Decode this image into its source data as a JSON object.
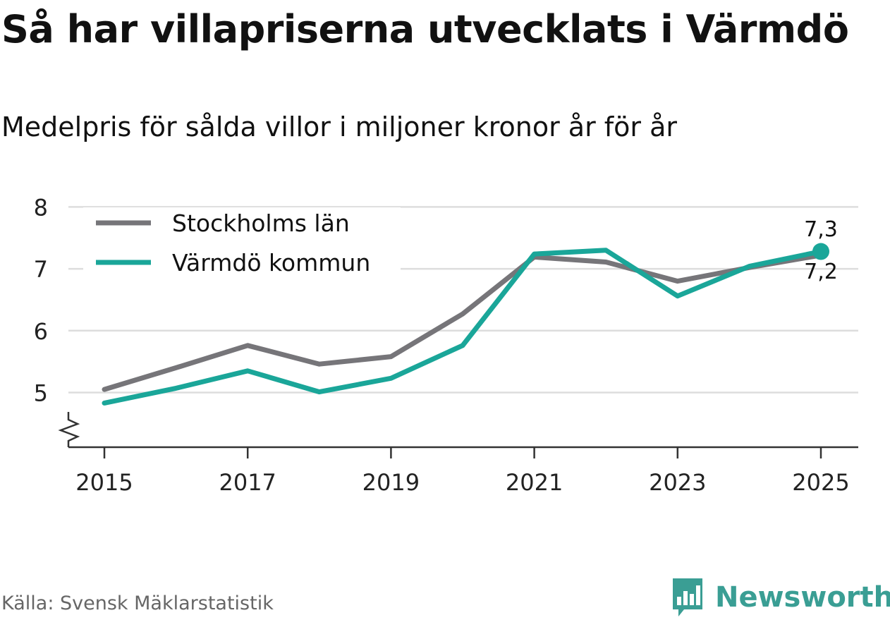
{
  "title": "Så har villapriserna utvecklats i Värmdö",
  "subtitle": "Medelpris för sålda villor i miljoner kronor år för år",
  "source": "Källa: Svensk Mäklarstatistik",
  "brand": "Newsworthy",
  "colors": {
    "stockholm": "#767579",
    "varmdo": "#1aa699",
    "brand": "#3a9e94",
    "grid": "#dddddd",
    "axis": "#333333"
  },
  "chart_data": {
    "type": "line",
    "x": [
      2015,
      2016,
      2017,
      2018,
      2019,
      2020,
      2021,
      2022,
      2023,
      2024,
      2025
    ],
    "x_tick_labels": [
      "2015",
      "2017",
      "2019",
      "2021",
      "2023",
      "2025"
    ],
    "y_tick_labels": [
      "5",
      "6",
      "7",
      "8"
    ],
    "ylim": [
      4.1,
      8.0
    ],
    "y_axis_break": true,
    "grid": true,
    "legend_placement": "top-left",
    "series": [
      {
        "name": "Stockholms län",
        "color": "#767579",
        "values": [
          5.05,
          5.4,
          5.76,
          5.46,
          5.58,
          6.27,
          7.19,
          7.11,
          6.8,
          7.02,
          7.22
        ]
      },
      {
        "name": "Värmdö kommun",
        "color": "#1aa699",
        "values": [
          4.83,
          5.07,
          5.35,
          5.01,
          5.23,
          5.76,
          7.24,
          7.3,
          6.56,
          7.04,
          7.28
        ]
      }
    ],
    "end_labels": [
      "7,3",
      "7,2"
    ]
  }
}
